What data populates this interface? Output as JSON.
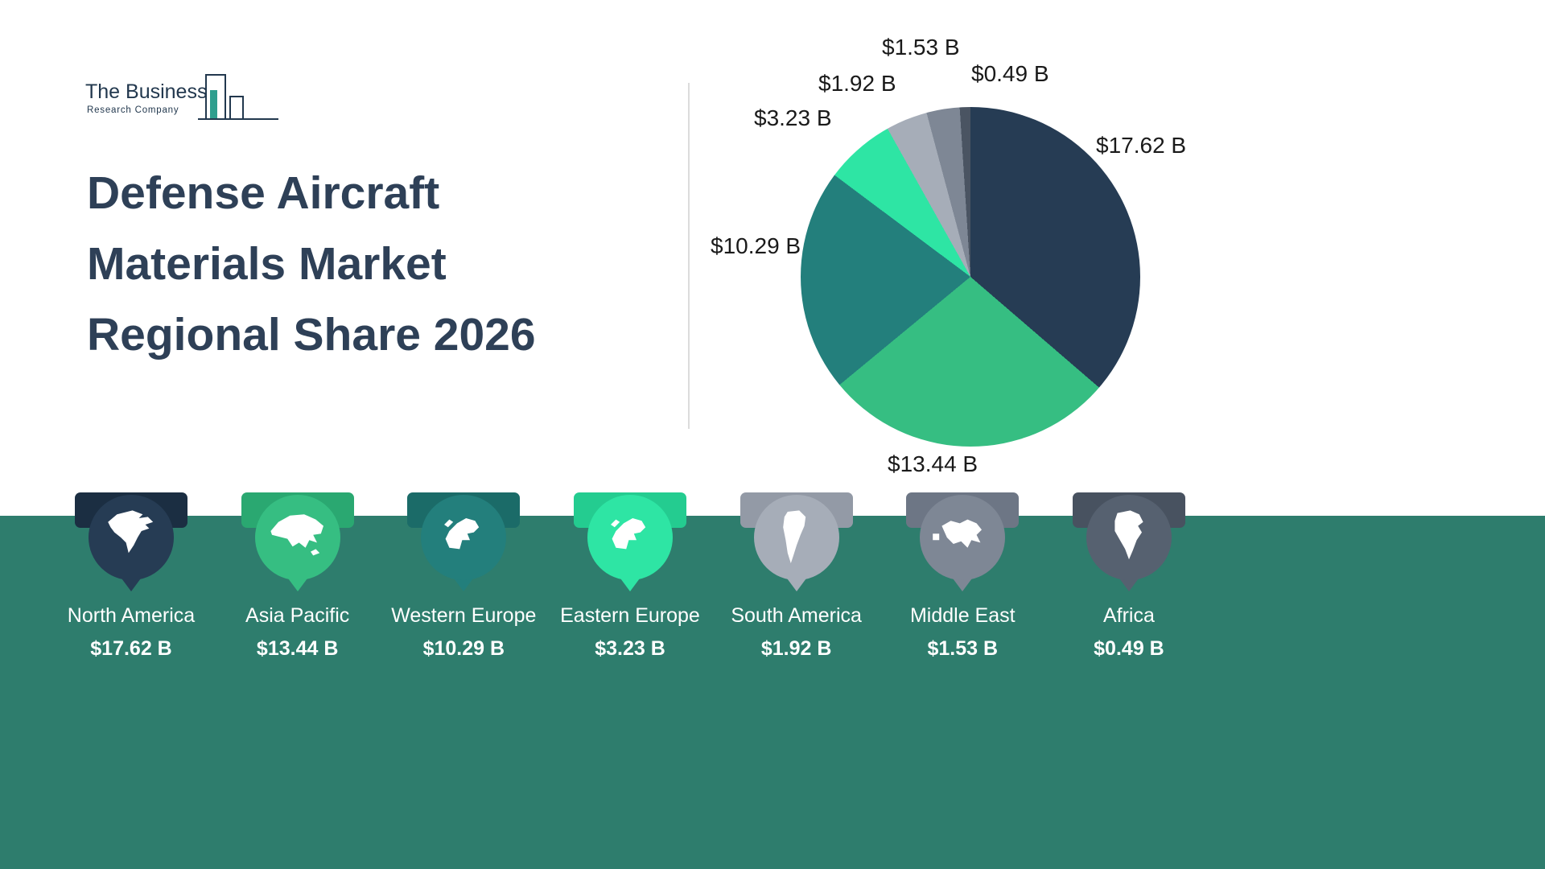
{
  "logo": {
    "line1": "The Business",
    "line2": "Research Company"
  },
  "title": {
    "line1": "Defense Aircraft",
    "line2": "Materials Market",
    "line3": "Regional Share 2026"
  },
  "chart_data": {
    "type": "pie",
    "title": "Defense Aircraft Materials Market Regional Share 2026",
    "categories": [
      "North America",
      "Asia Pacific",
      "Western Europe",
      "Eastern Europe",
      "South America",
      "Middle East",
      "Africa"
    ],
    "values": [
      17.62,
      13.44,
      10.29,
      3.23,
      1.92,
      1.53,
      0.49
    ],
    "labels": [
      "$17.62 B",
      "$13.44 B",
      "$10.29 B",
      "$3.23 B",
      "$1.92 B",
      "$1.53 B",
      "$0.49 B"
    ],
    "colors": [
      "#263C54",
      "#36BE82",
      "#237F7C",
      "#2EE5A4",
      "#A6ADB8",
      "#7E8795",
      "#4A5462"
    ],
    "start_angle_deg": 0,
    "direction": "clockwise",
    "legend_position": "bottom"
  },
  "regions": [
    {
      "name": "North America",
      "value": "$17.62 B",
      "color": "#263C54",
      "accent": "#1B2E42",
      "icon": "north-america-icon"
    },
    {
      "name": "Asia Pacific",
      "value": "$13.44 B",
      "color": "#36BE82",
      "accent": "#2AA871",
      "icon": "asia-pacific-icon"
    },
    {
      "name": "Western Europe",
      "value": "$10.29 B",
      "color": "#237F7C",
      "accent": "#1B6B68",
      "icon": "western-europe-icon"
    },
    {
      "name": "Eastern Europe",
      "value": "$3.23 B",
      "color": "#2EE5A4",
      "accent": "#24CC90",
      "icon": "eastern-europe-icon"
    },
    {
      "name": "South America",
      "value": "$1.92 B",
      "color": "#A6ADB8",
      "accent": "#939AA6",
      "icon": "south-america-icon"
    },
    {
      "name": "Middle East",
      "value": "$1.53 B",
      "color": "#7E8795",
      "accent": "#6D7685",
      "icon": "middle-east-icon"
    },
    {
      "name": "Africa",
      "value": "$0.49 B",
      "color": "#566170",
      "accent": "#485260",
      "icon": "africa-icon"
    }
  ],
  "theme": {
    "band": "#2E7D6D",
    "title_color": "#2E4057",
    "label_color": "#1A1A1A",
    "divider": "#DCDCDC",
    "logo_ink": "#22384E",
    "logo_teal": "#2E9E8E"
  }
}
